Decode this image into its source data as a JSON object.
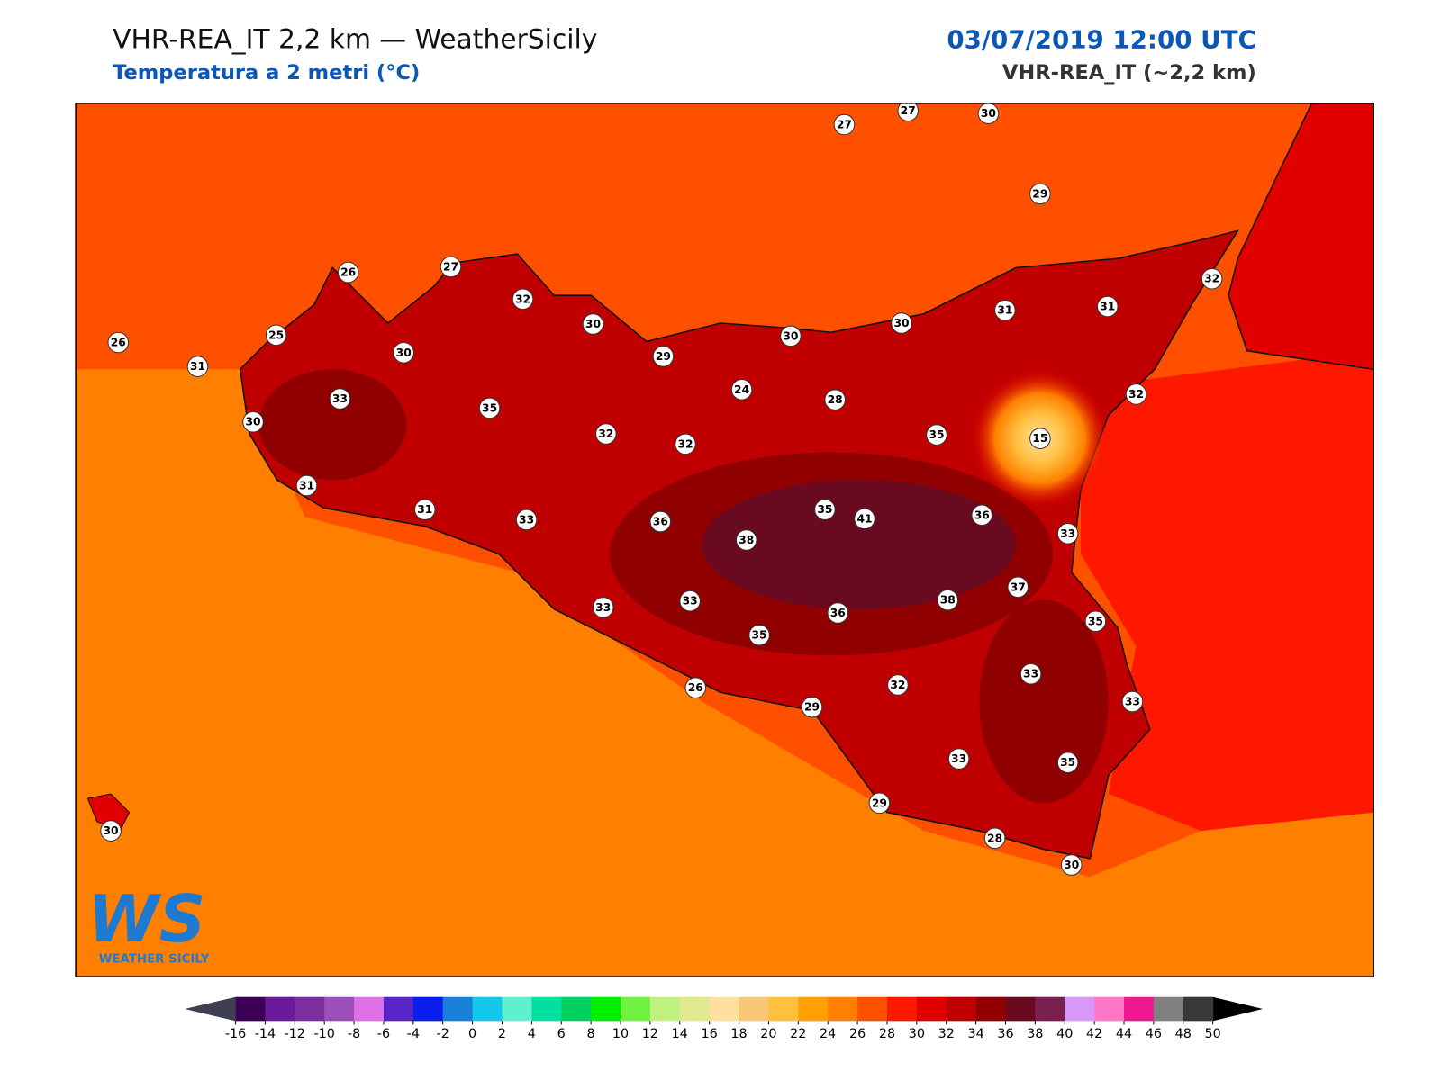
{
  "header": {
    "title": "VHR-REA_IT 2,2 km — WeatherSicily",
    "subtitle": "Temperatura a 2 metri (°C)",
    "datetime": "03/07/2019 12:00 UTC",
    "model": "VHR-REA_IT (~2,2 km)"
  },
  "stations": [
    27,
    27,
    30,
    29,
    26,
    27,
    32,
    30,
    26,
    31,
    25,
    30,
    29,
    30,
    30,
    31,
    31,
    32,
    33,
    35,
    30,
    24,
    28,
    32,
    32,
    32,
    35,
    15,
    31,
    31,
    33,
    36,
    38,
    35,
    41,
    36,
    33,
    37,
    33,
    33,
    36,
    38,
    35,
    35,
    33,
    33,
    26,
    32,
    29,
    33,
    35,
    29,
    28,
    30,
    30
  ],
  "colorbar": {
    "ticks": [
      -16,
      -14,
      -12,
      -10,
      -8,
      -6,
      -4,
      -2,
      0,
      2,
      4,
      6,
      8,
      10,
      12,
      14,
      16,
      18,
      20,
      22,
      24,
      26,
      28,
      30,
      32,
      34,
      36,
      38,
      40,
      42,
      44,
      46,
      48,
      50
    ],
    "colors": [
      "#3d0057",
      "#6a1b9a",
      "#7b2f9e",
      "#9c4fb8",
      "#e070e8",
      "#5a25c8",
      "#0a1ef0",
      "#1a7fd8",
      "#12c8e8",
      "#5ff0d0",
      "#00e0a0",
      "#00d060",
      "#00f000",
      "#70f040",
      "#c0f080",
      "#e0e890",
      "#ffe0a0",
      "#f8c878",
      "#ffc040",
      "#ffa000",
      "#ff8000",
      "#ff5000",
      "#ff1800",
      "#e00000",
      "#c00000",
      "#900000",
      "#6a0a20",
      "#7a2050",
      "#d898f8",
      "#ff78c8",
      "#f01890",
      "#808080",
      "#383838"
    ],
    "under_color": "#3f3f52",
    "over_color": "#000000"
  },
  "logo": {
    "mark": "WS",
    "name": "WEATHER SICILY"
  }
}
